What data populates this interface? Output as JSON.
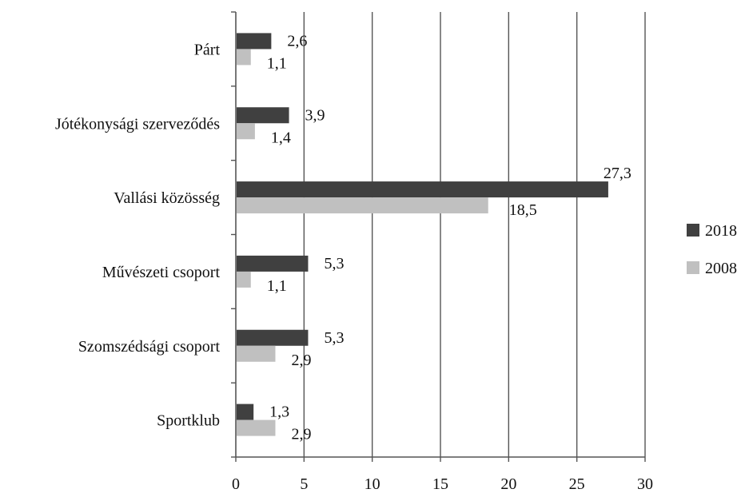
{
  "chart_data": {
    "type": "bar",
    "orientation": "horizontal",
    "categories": [
      "Párt",
      "Jótékonysági szerveződés",
      "Vallási közösség",
      "Művészeti csoport",
      "Szomszédsági csoport",
      "Sportklub"
    ],
    "series": [
      {
        "name": "2018",
        "color": "#404040",
        "values": [
          2.6,
          3.9,
          27.3,
          5.3,
          5.3,
          1.3
        ],
        "labels": [
          "2,6",
          "3,9",
          "27,3",
          "5,3",
          "5,3",
          "1,3"
        ]
      },
      {
        "name": "2008",
        "color": "#c0c0c0",
        "values": [
          1.1,
          1.4,
          18.5,
          1.1,
          2.9,
          2.9
        ],
        "labels": [
          "1,1",
          "1,4",
          "18,5",
          "1,1",
          "2,9",
          "2,9"
        ]
      }
    ],
    "xlim": [
      0,
      30
    ],
    "xticks": [
      "0",
      "5",
      "10",
      "15",
      "20",
      "25",
      "30"
    ],
    "grid": "vertical",
    "legend": "right",
    "title": "",
    "xlabel": "",
    "ylabel": ""
  }
}
